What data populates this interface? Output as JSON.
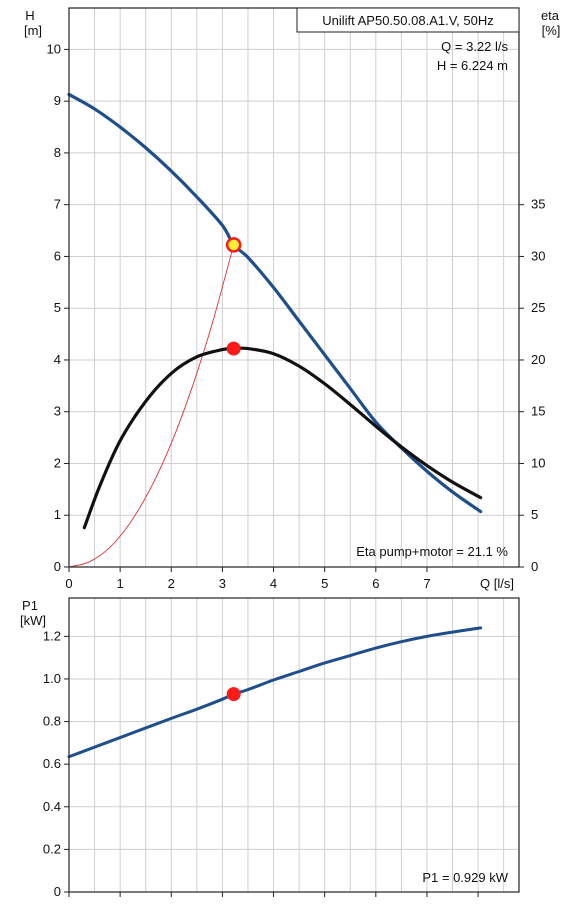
{
  "colors": {
    "head_curve": "#1f4e8c",
    "eta_curve": "#111111",
    "system_curve": "#e03030",
    "power_curve": "#1f4e8c",
    "marker_fill": "#ff1a1a",
    "duty_marker_fill": "#ffee33",
    "grid": "#cfcfcf"
  },
  "chart_data": [
    {
      "type": "line",
      "title": "Unilift AP50.50.08.A1.V, 50Hz",
      "xlabel": "Q [l/s]",
      "ylabel_left": "H\n[m]",
      "ylabel_right": "eta\n[%]",
      "xlim": [
        0,
        8.8
      ],
      "ylim_left": [
        0,
        10.8
      ],
      "ylim_right": [
        0,
        54
      ],
      "x_ticks": [
        "0",
        "1",
        "2",
        "3",
        "4",
        "5",
        "6",
        "7"
      ],
      "y_ticks_left": [
        "0",
        "1",
        "2",
        "3",
        "4",
        "5",
        "6",
        "7",
        "8",
        "9",
        "10"
      ],
      "y_ticks_right": [
        "0",
        "5",
        "10",
        "15",
        "20",
        "25",
        "30",
        "35"
      ],
      "annotations": {
        "q_text": "Q = 3.22 l/s",
        "h_text": "H = 6.224 m",
        "eta_text": "Eta pump+motor = 21.1 %"
      },
      "series": [
        {
          "key": "head",
          "axis": "left",
          "x": [
            0,
            0.5,
            1,
            1.5,
            2,
            2.5,
            3,
            3.22,
            3.5,
            4,
            4.5,
            5,
            5.5,
            6,
            6.5,
            7,
            7.5,
            8.05
          ],
          "y": [
            9.13,
            8.85,
            8.5,
            8.1,
            7.65,
            7.15,
            6.6,
            6.224,
            5.98,
            5.4,
            4.75,
            4.1,
            3.45,
            2.8,
            2.3,
            1.85,
            1.45,
            1.07
          ]
        },
        {
          "key": "eta",
          "axis": "right",
          "x": [
            0.3,
            0.6,
            1,
            1.5,
            2,
            2.5,
            3,
            3.22,
            3.5,
            4,
            4.5,
            5,
            5.5,
            6,
            6.5,
            7,
            7.5,
            8.05
          ],
          "y": [
            3.8,
            7.8,
            12.2,
            16.0,
            18.7,
            20.3,
            21.0,
            21.1,
            21.1,
            20.6,
            19.4,
            17.7,
            15.7,
            13.6,
            11.6,
            9.8,
            8.2,
            6.7
          ]
        },
        {
          "key": "system",
          "axis": "left",
          "x": [
            0,
            0.4,
            0.8,
            1.2,
            1.6,
            2.0,
            2.4,
            2.8,
            3.22
          ],
          "y": [
            0,
            0.1,
            0.38,
            0.86,
            1.53,
            2.39,
            3.45,
            4.7,
            6.224
          ]
        }
      ],
      "markers": [
        {
          "x": 3.22,
          "y": 6.224,
          "axis": "left",
          "kind": "duty"
        },
        {
          "x": 3.22,
          "y": 21.1,
          "axis": "right",
          "kind": "eta"
        }
      ]
    },
    {
      "type": "line",
      "xlabel": "",
      "ylabel_left": "P1\n[kW]",
      "xlim": [
        0,
        8.8
      ],
      "ylim_left": [
        0,
        1.38
      ],
      "y_ticks_left": [
        "0",
        "0.2",
        "0.4",
        "0.6",
        "0.8",
        "1.0",
        "1.2"
      ],
      "annotations": {
        "p1_text": "P1 = 0.929 kW"
      },
      "series": [
        {
          "key": "power",
          "axis": "left",
          "x": [
            0,
            0.5,
            1,
            1.5,
            2,
            2.5,
            3,
            3.22,
            3.5,
            4,
            4.5,
            5,
            5.5,
            6,
            6.5,
            7,
            7.5,
            8.05
          ],
          "y": [
            0.635,
            0.68,
            0.725,
            0.77,
            0.815,
            0.858,
            0.905,
            0.929,
            0.95,
            0.995,
            1.035,
            1.075,
            1.11,
            1.145,
            1.175,
            1.2,
            1.22,
            1.24
          ]
        }
      ],
      "markers": [
        {
          "x": 3.22,
          "y": 0.929,
          "axis": "left",
          "kind": "power"
        }
      ]
    }
  ]
}
